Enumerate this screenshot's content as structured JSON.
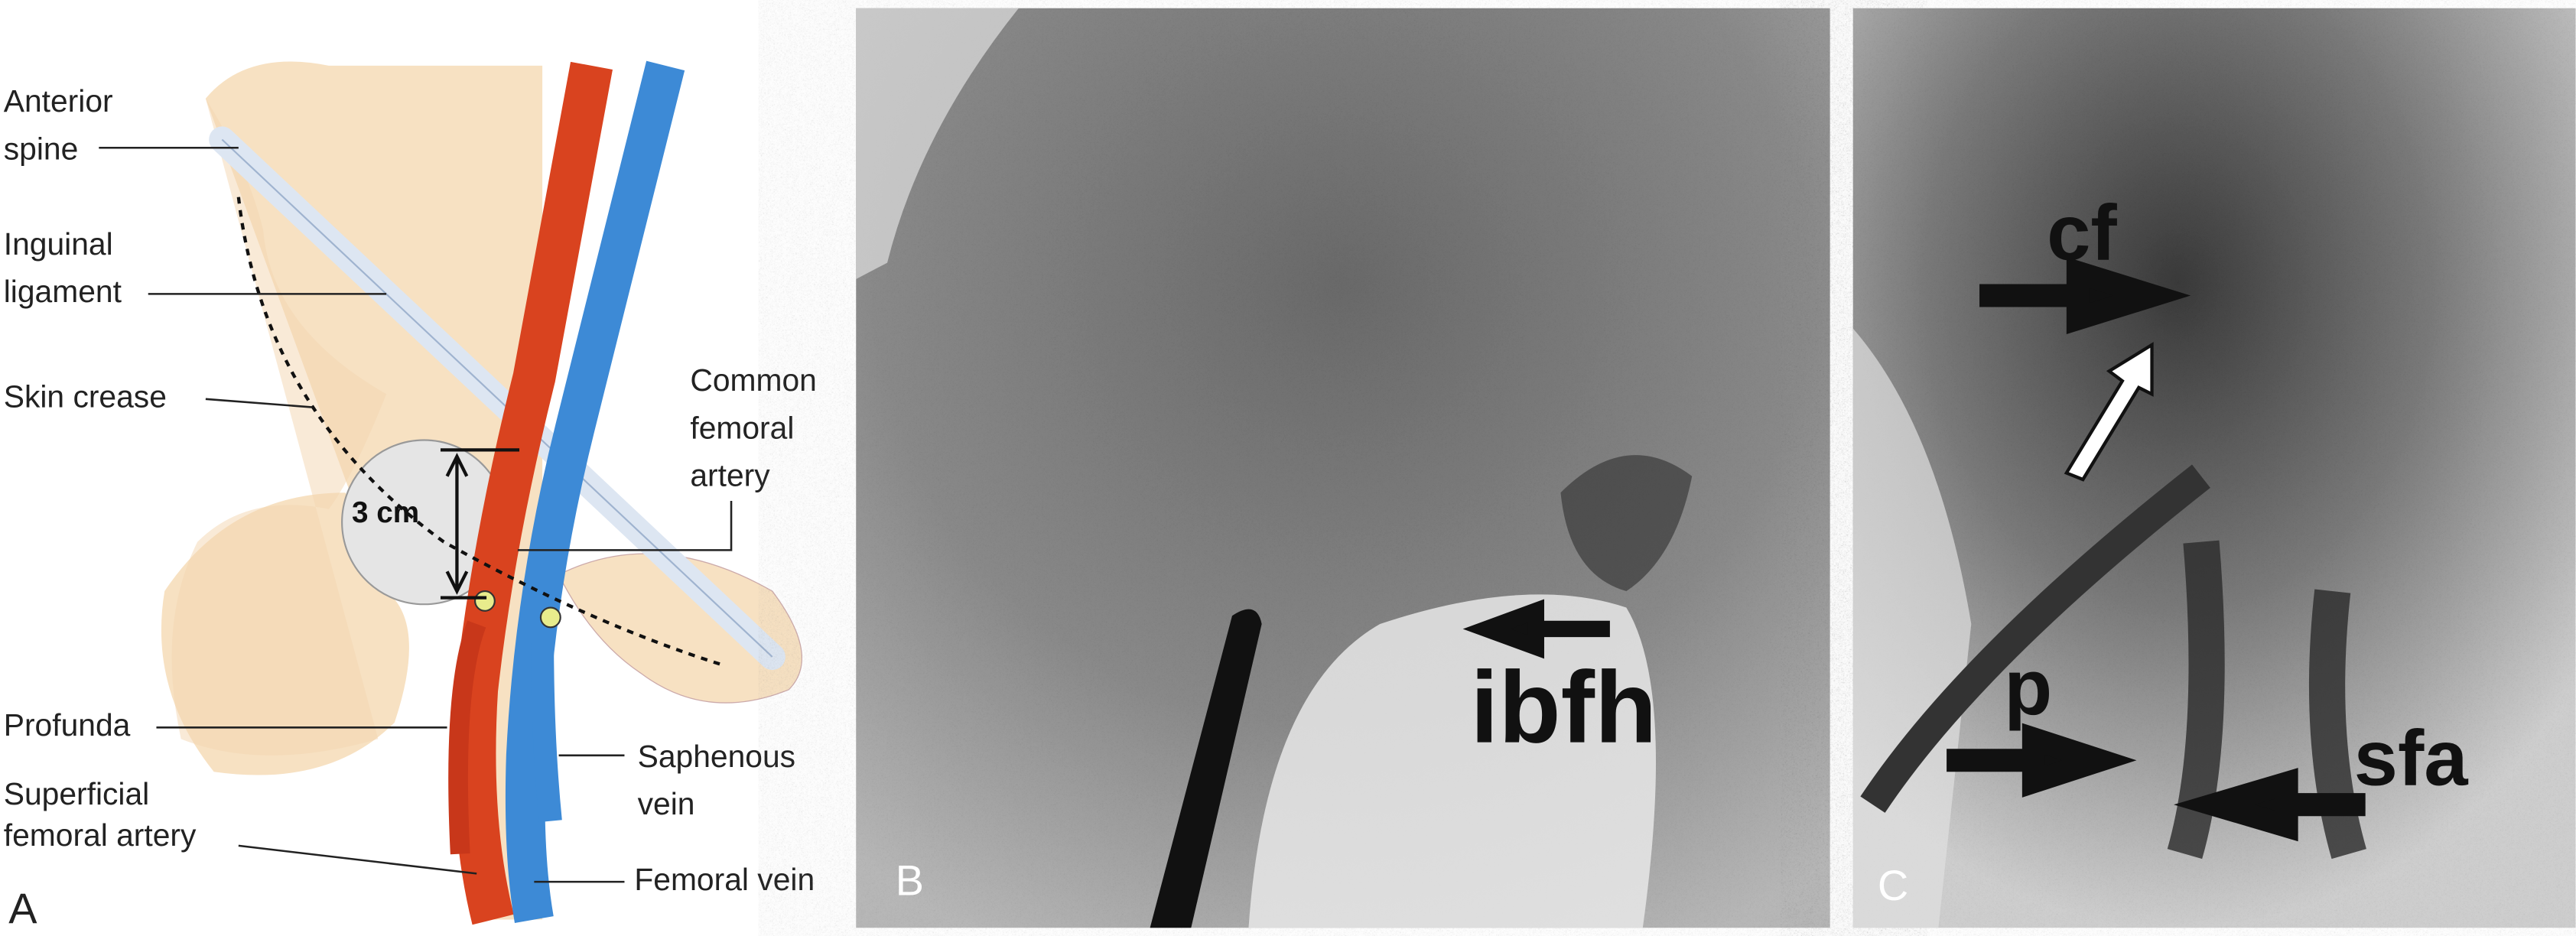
{
  "panel_a": {
    "letter": "A",
    "measurement": "3 cm",
    "labels": [
      {
        "lines": [
          "Anterior",
          "spine"
        ]
      },
      {
        "lines": [
          "Inguinal",
          "ligament"
        ]
      },
      {
        "lines": [
          "Skin crease"
        ]
      },
      {
        "lines": [
          "Common",
          "femoral",
          "artery"
        ]
      },
      {
        "lines": [
          "Profunda"
        ]
      },
      {
        "lines": [
          "Superficial",
          "femoral artery"
        ]
      },
      {
        "lines": [
          "Saphenous",
          "vein"
        ]
      },
      {
        "lines": [
          "Femoral vein"
        ]
      }
    ]
  },
  "panel_b": {
    "letter": "B",
    "annotations": [
      "ibfh"
    ]
  },
  "panel_c": {
    "letter": "C",
    "annotations": [
      "cf",
      "p",
      "sfa"
    ]
  }
}
